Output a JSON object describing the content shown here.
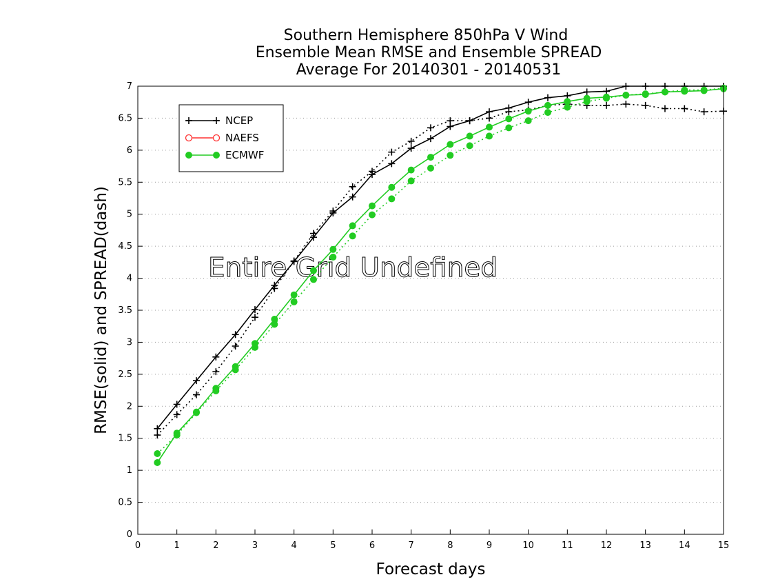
{
  "chart_data": {
    "type": "line",
    "title": [
      "Southern Hemisphere 850hPa V Wind",
      "Ensemble Mean RMSE and Ensemble SPREAD",
      "Average For 20140301 - 20140531"
    ],
    "xlabel": "Forecast days",
    "ylabel": "RMSE(solid) and SPREAD(dash)",
    "xlim": [
      0,
      15
    ],
    "ylim": [
      0,
      7
    ],
    "xticks": [
      "0",
      "1",
      "2",
      "3",
      "4",
      "5",
      "6",
      "7",
      "8",
      "9",
      "10",
      "11",
      "12",
      "13",
      "14",
      "15"
    ],
    "yticks": [
      "0",
      "0.5",
      "1",
      "1.5",
      "2",
      "2.5",
      "3",
      "3.5",
      "4",
      "4.5",
      "5",
      "5.5",
      "6",
      "6.5",
      "7"
    ],
    "grid": true,
    "legend_position": "top-left",
    "annotation": "Entire Grid Undefined",
    "legend": [
      {
        "name": "NCEP",
        "color": "#000000",
        "marker": "plus"
      },
      {
        "name": "NAEFS",
        "color": "#ff3030",
        "marker": "circle-open"
      },
      {
        "name": "ECMWF",
        "color": "#22cc22",
        "marker": "circle-filled"
      }
    ],
    "x": [
      0.5,
      1,
      1.5,
      2,
      2.5,
      3,
      3.5,
      4,
      4.5,
      5,
      5.5,
      6,
      6.5,
      7,
      7.5,
      8,
      8.5,
      9,
      9.5,
      10,
      10.5,
      11,
      11.5,
      12,
      12.5,
      13,
      13.5,
      14,
      14.5,
      15
    ],
    "series": [
      {
        "name": "NCEP",
        "kind": "rmse",
        "style": "solid",
        "color": "#000000",
        "marker": "plus",
        "values": [
          1.65,
          2.03,
          2.4,
          2.77,
          3.12,
          3.51,
          3.89,
          4.26,
          4.64,
          5.02,
          5.27,
          5.62,
          5.79,
          6.03,
          6.18,
          6.37,
          6.46,
          6.6,
          6.66,
          6.75,
          6.82,
          6.85,
          6.91,
          6.92,
          7.0,
          7.0,
          7.0,
          7.0,
          7.0,
          7.0
        ]
      },
      {
        "name": "NCEP",
        "kind": "spread",
        "style": "dash",
        "color": "#000000",
        "marker": "plus",
        "values": [
          1.55,
          1.87,
          2.18,
          2.54,
          2.94,
          3.39,
          3.84,
          4.27,
          4.7,
          5.05,
          5.43,
          5.67,
          5.97,
          6.14,
          6.35,
          6.46,
          6.46,
          6.5,
          6.6,
          6.63,
          6.7,
          6.72,
          6.7,
          6.7,
          6.72,
          6.7,
          6.65,
          6.65,
          6.6,
          6.61
        ]
      },
      {
        "name": "ECMWF",
        "kind": "rmse",
        "style": "solid",
        "color": "#22cc22",
        "marker": "circle-filled",
        "values": [
          1.12,
          1.58,
          1.91,
          2.28,
          2.62,
          2.98,
          3.36,
          3.74,
          4.12,
          4.45,
          4.82,
          5.13,
          5.42,
          5.69,
          5.89,
          6.09,
          6.22,
          6.36,
          6.49,
          6.61,
          6.7,
          6.76,
          6.81,
          6.83,
          6.86,
          6.87,
          6.91,
          6.92,
          6.93,
          6.96
        ]
      },
      {
        "name": "ECMWF",
        "kind": "spread",
        "style": "dash",
        "color": "#22cc22",
        "marker": "circle-filled",
        "values": [
          1.26,
          1.55,
          1.9,
          2.24,
          2.57,
          2.92,
          3.28,
          3.63,
          3.98,
          4.33,
          4.66,
          4.99,
          5.24,
          5.52,
          5.72,
          5.92,
          6.07,
          6.22,
          6.35,
          6.46,
          6.59,
          6.67,
          6.76,
          6.81,
          6.86,
          6.88,
          6.91,
          6.94,
          6.94,
          6.97
        ]
      }
    ]
  }
}
